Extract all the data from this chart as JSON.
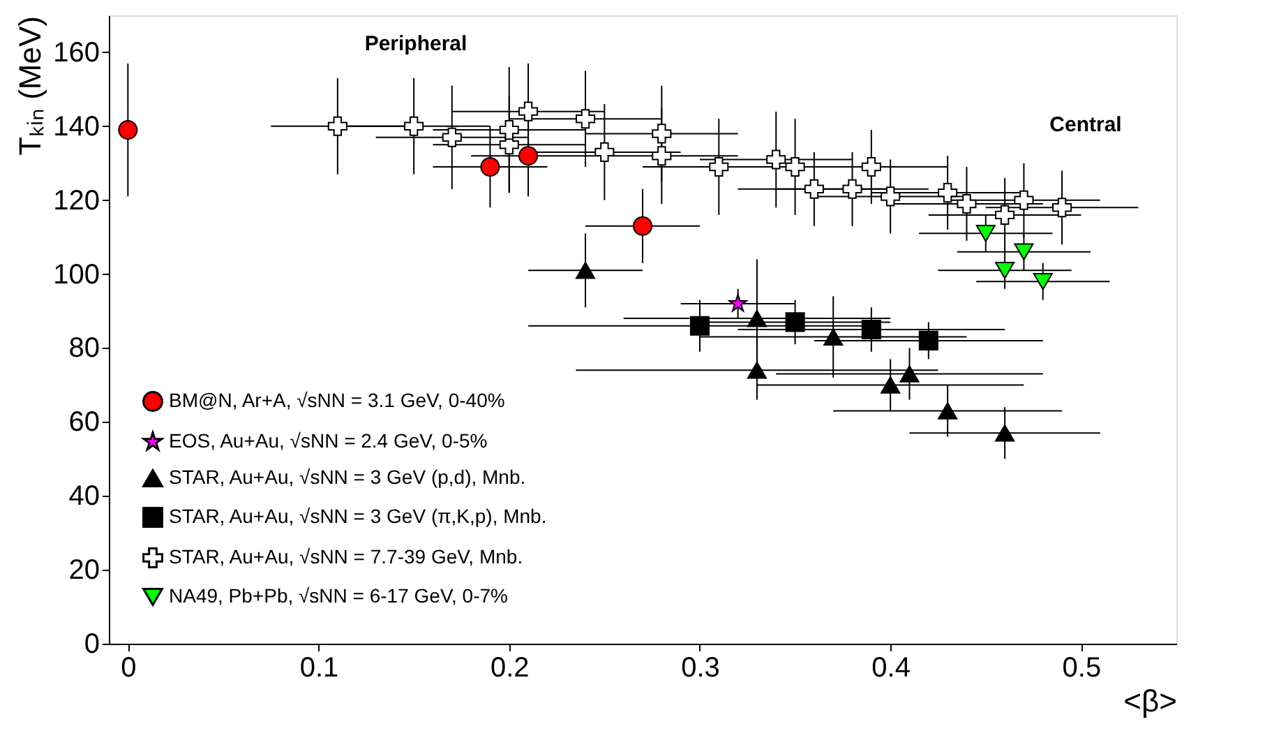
{
  "chart_data": {
    "type": "scatter",
    "xlabel": "<β>",
    "ylabel": "Tₖᵢₙ (MeV)",
    "xlim": [
      -0.01,
      0.55
    ],
    "ylim": [
      0,
      170
    ],
    "xticks": [
      0,
      0.1,
      0.2,
      0.3,
      0.4,
      0.5
    ],
    "yticks": [
      0,
      20,
      40,
      60,
      80,
      100,
      120,
      140,
      160
    ],
    "grid": false,
    "legend": "bottom left",
    "annotations": [
      "Peripheral",
      "Central"
    ],
    "series": [
      {
        "name": "BM@N,  Ar+A, √sNN = 3.1 GeV, 0-40%",
        "color": "#ff0000",
        "marker": "circle",
        "x": [
          0,
          0.19,
          0.21,
          0.27
        ],
        "values": [
          139,
          129,
          132,
          113
        ],
        "errors": [
          18,
          11,
          11,
          10
        ],
        "xerrors": [
          null,
          0.03,
          0.03,
          0.03
        ]
      },
      {
        "name": "EOS,  Au+Au, √sNN = 2.4 GeV, 0-5%",
        "color": "#ff00ff",
        "marker": "star",
        "x": [
          0.32
        ],
        "values": [
          92
        ],
        "errors": [
          4
        ],
        "xerrors": [
          0.03
        ]
      },
      {
        "name": "STAR,  Au+Au, √sNN = 3 GeV (p,d), Mnb.",
        "color": "#000000",
        "marker": "triangle",
        "x": [
          0.24,
          0.33,
          0.33,
          0.37,
          0.4,
          0.41,
          0.43,
          0.46
        ],
        "values": [
          101,
          88,
          74,
          83,
          70,
          73,
          63,
          57
        ],
        "errors": [
          10,
          16,
          8,
          11,
          7,
          7,
          7,
          7
        ],
        "xerrors": [
          0.03,
          0.07,
          0.095,
          0.07,
          0.07,
          0.07,
          0.06,
          0.05
        ]
      },
      {
        "name": "STAR,  Au+Au, √sNN = 3 GeV (π,K,p), Mnb.",
        "color": "#000000",
        "marker": "square",
        "x": [
          0.3,
          0.35,
          0.39,
          0.42
        ],
        "values": [
          86,
          87,
          85,
          82
        ],
        "errors": [
          7,
          6,
          6,
          5
        ],
        "xerrors": [
          0.09,
          0.05,
          0.07,
          0.06
        ]
      },
      {
        "name": "STAR,  Au+Au, √sNN = 7.7-39 GeV, Mnb.",
        "color": "#ffffff",
        "marker": "cross",
        "x": [
          0.11,
          0.15,
          0.17,
          0.2,
          0.2,
          0.21,
          0.24,
          0.25,
          0.28,
          0.28,
          0.31,
          0.34,
          0.35,
          0.36,
          0.38,
          0.39,
          0.4,
          0.43,
          0.44,
          0.46,
          0.47,
          0.49
        ],
        "values": [
          140,
          140,
          137,
          135,
          139,
          144,
          142,
          133,
          138,
          132,
          129,
          131,
          129,
          123,
          123,
          129,
          121,
          122,
          119,
          116,
          120,
          118
        ],
        "errors": [
          13,
          13,
          14,
          13,
          17,
          13,
          13,
          13,
          13,
          13,
          13,
          13,
          13,
          10,
          10,
          10,
          10,
          10,
          10,
          10,
          10,
          10
        ],
        "xerrors": [
          0.035,
          0.04,
          0.04,
          0.04,
          0.04,
          0.04,
          0.04,
          0.04,
          0.04,
          0.04,
          0.04,
          0.04,
          0.04,
          0.04,
          0.04,
          0.04,
          0.04,
          0.04,
          0.04,
          0.04,
          0.04,
          0.04
        ]
      },
      {
        "name": "NA49,  Pb+Pb, √sNN = 6-17 GeV, 0-7%",
        "color": "#00ff00",
        "marker": "triangle-down",
        "x": [
          0.45,
          0.47,
          0.46,
          0.48
        ],
        "values": [
          111,
          106,
          101,
          98
        ],
        "errors": [
          5,
          5,
          5,
          5
        ],
        "xerrors": [
          0.035,
          0.035,
          0.035,
          0.035
        ]
      }
    ]
  }
}
